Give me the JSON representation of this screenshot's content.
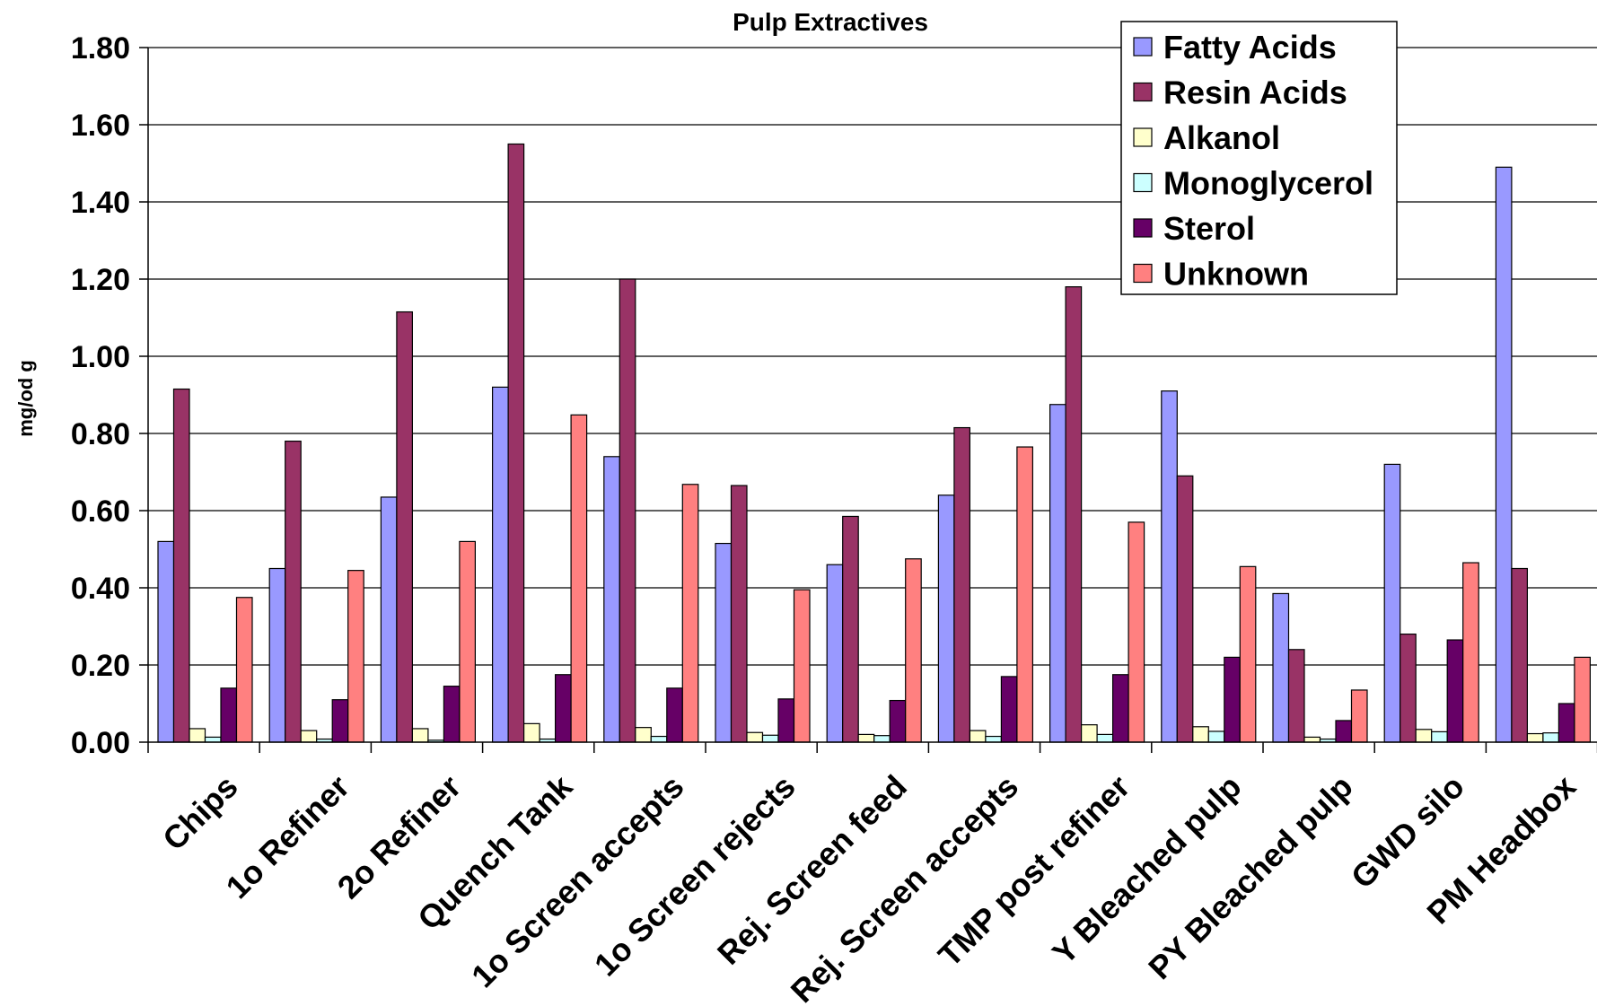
{
  "chart_data": {
    "type": "bar",
    "title": "Pulp Extractives",
    "xlabel": "",
    "ylabel": "mg/od g",
    "ylim": [
      0,
      1.8
    ],
    "yticks": [
      "0.00",
      "0.20",
      "0.40",
      "0.60",
      "0.80",
      "1.00",
      "1.20",
      "1.40",
      "1.60",
      "1.80"
    ],
    "grid": true,
    "legend_position": "top-right",
    "categories": [
      "Chips",
      "1o Refiner",
      "2o Refiner",
      "Quench Tank",
      "1o Screen accepts",
      "1o Screen rejects",
      "Rej. Screen feed",
      "Rej. Screen accepts",
      "TMP post refiner",
      "Y Bleached pulp",
      "PY Bleached pulp",
      "GWD silo",
      "PM Headbox"
    ],
    "series": [
      {
        "name": "Fatty Acids",
        "color": "#9999ff",
        "values": [
          0.52,
          0.45,
          0.635,
          0.92,
          0.74,
          0.515,
          0.46,
          0.64,
          0.875,
          0.91,
          0.385,
          0.72,
          1.49
        ]
      },
      {
        "name": "Resin Acids",
        "color": "#993366",
        "values": [
          0.915,
          0.78,
          1.115,
          1.55,
          1.2,
          0.665,
          0.585,
          0.815,
          1.18,
          0.69,
          0.24,
          0.28,
          0.45
        ]
      },
      {
        "name": "Alkanol",
        "color": "#ffffcc",
        "values": [
          0.035,
          0.03,
          0.035,
          0.048,
          0.038,
          0.025,
          0.02,
          0.03,
          0.045,
          0.04,
          0.013,
          0.033,
          0.022
        ]
      },
      {
        "name": "Monoglycerol",
        "color": "#ccffff",
        "values": [
          0.013,
          0.008,
          0.005,
          0.008,
          0.015,
          0.018,
          0.017,
          0.015,
          0.02,
          0.028,
          0.008,
          0.027,
          0.024
        ]
      },
      {
        "name": "Sterol",
        "color": "#660066",
        "values": [
          0.14,
          0.11,
          0.145,
          0.175,
          0.14,
          0.112,
          0.108,
          0.17,
          0.175,
          0.22,
          0.056,
          0.265,
          0.1
        ]
      },
      {
        "name": "Unknown",
        "color": "#ff8080",
        "values": [
          0.375,
          0.445,
          0.52,
          0.848,
          0.668,
          0.395,
          0.475,
          0.765,
          0.57,
          0.455,
          0.135,
          0.465,
          0.22
        ]
      }
    ]
  }
}
